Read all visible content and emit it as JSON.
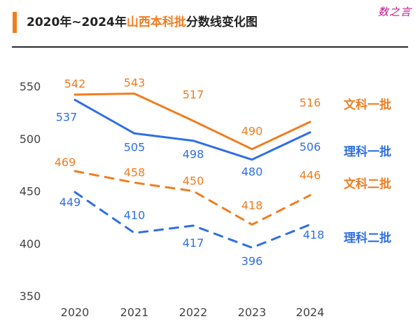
{
  "header": {
    "title_prefix": "2020年~2024年",
    "title_highlight": "山西本科批",
    "title_suffix": "分数线变化图",
    "accent_color": "#f07d1f"
  },
  "watermark": "数之言",
  "chart_data": {
    "type": "line",
    "title": "2020年~2024年山西本科批分数线变化图",
    "categories": [
      "2020",
      "2021",
      "2022",
      "2023",
      "2024"
    ],
    "ylim": [
      350,
      550
    ],
    "yticks": [
      350,
      400,
      450,
      500,
      550
    ],
    "grid": false,
    "series": [
      {
        "name": "文科一批",
        "values": [
          542,
          543,
          517,
          490,
          516
        ],
        "color": "#f07d1f",
        "style": "solid"
      },
      {
        "name": "理科一批",
        "values": [
          537,
          505,
          498,
          480,
          506
        ],
        "color": "#2f6fe4",
        "style": "solid"
      },
      {
        "name": "文科二批",
        "values": [
          469,
          458,
          450,
          418,
          446
        ],
        "color": "#f07d1f",
        "style": "dashed"
      },
      {
        "name": "理科二批",
        "values": [
          449,
          410,
          417,
          396,
          418
        ],
        "color": "#2f6fe4",
        "style": "dashed"
      }
    ]
  }
}
